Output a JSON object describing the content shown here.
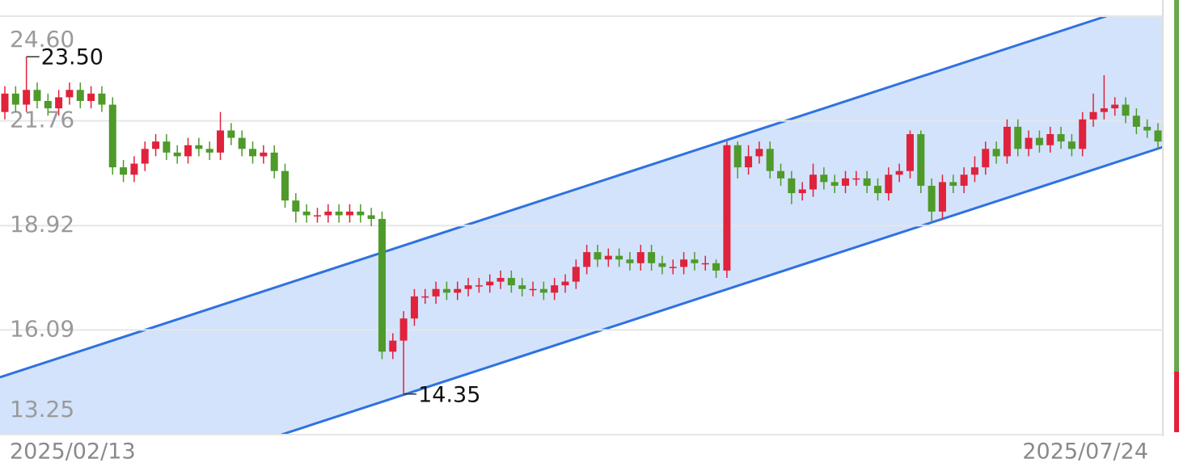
{
  "chart_data": {
    "type": "candlestick",
    "x_labels": [
      "2025/02/13",
      "2025/07/24"
    ],
    "ylim": [
      13.25,
      24.6
    ],
    "yticks": [
      {
        "value": 24.6,
        "label": "24.60"
      },
      21.76,
      18.92,
      16.09,
      13.25
    ],
    "grid": true,
    "up_color": "#e0223c",
    "down_color": "#4e9a2a",
    "open": [
      22.0,
      22.5,
      22.2,
      22.6,
      22.3,
      22.1,
      22.4,
      22.6,
      22.3,
      22.5,
      22.2,
      20.5,
      20.3,
      20.6,
      21.0,
      21.2,
      20.9,
      20.8,
      21.1,
      21.0,
      20.9,
      21.5,
      21.3,
      21.0,
      20.8,
      20.9,
      20.4,
      19.6,
      19.3,
      19.2,
      19.2,
      19.3,
      19.2,
      19.3,
      19.2,
      19.1,
      15.5,
      15.8,
      16.4,
      17.0,
      17.0,
      17.2,
      17.1,
      17.2,
      17.3,
      17.3,
      17.4,
      17.5,
      17.3,
      17.2,
      17.2,
      17.1,
      17.3,
      17.4,
      17.8,
      18.2,
      18.0,
      18.1,
      18.0,
      17.9,
      18.2,
      17.9,
      17.8,
      17.8,
      18.0,
      17.9,
      17.9,
      17.7,
      21.1,
      20.5,
      20.8,
      21.0,
      20.4,
      20.2,
      19.8,
      19.9,
      20.3,
      20.1,
      20.0,
      20.2,
      20.2,
      20.0,
      19.8,
      20.3,
      20.4,
      21.4,
      20.0,
      19.3,
      20.1,
      20.0,
      20.3,
      20.5,
      21.0,
      20.8,
      21.6,
      21.0,
      21.3,
      21.1,
      21.4,
      21.2,
      21.0,
      21.8,
      22.0,
      22.1,
      22.2,
      21.9,
      21.6,
      21.5
    ],
    "high": [
      22.7,
      22.7,
      23.5,
      22.8,
      22.5,
      22.6,
      22.8,
      22.8,
      22.7,
      22.7,
      22.4,
      20.7,
      20.8,
      21.2,
      21.4,
      21.4,
      21.1,
      21.3,
      21.3,
      21.2,
      22.0,
      21.7,
      21.5,
      21.2,
      21.1,
      21.1,
      20.6,
      19.8,
      19.5,
      19.4,
      19.5,
      19.5,
      19.5,
      19.5,
      19.4,
      19.3,
      16.0,
      16.6,
      17.2,
      17.2,
      17.4,
      17.4,
      17.4,
      17.5,
      17.5,
      17.6,
      17.7,
      17.7,
      17.5,
      17.4,
      17.4,
      17.5,
      17.6,
      18.0,
      18.4,
      18.4,
      18.3,
      18.3,
      18.2,
      18.4,
      18.4,
      18.1,
      18.0,
      18.2,
      18.2,
      18.1,
      18.0,
      21.2,
      21.2,
      21.1,
      21.2,
      21.2,
      20.6,
      20.4,
      20.1,
      20.6,
      20.5,
      20.3,
      20.4,
      20.4,
      20.4,
      20.2,
      20.5,
      20.6,
      21.5,
      21.5,
      20.2,
      20.3,
      20.3,
      20.5,
      20.8,
      21.2,
      21.2,
      21.8,
      21.8,
      21.5,
      21.5,
      21.6,
      21.6,
      21.4,
      22.0,
      22.5,
      23.0,
      22.4,
      22.4,
      22.1,
      21.8,
      21.7
    ],
    "low": [
      21.8,
      22.0,
      22.0,
      22.1,
      21.9,
      21.9,
      22.2,
      22.1,
      22.1,
      22.0,
      20.3,
      20.1,
      20.1,
      20.4,
      20.8,
      20.7,
      20.6,
      20.6,
      20.8,
      20.7,
      20.7,
      21.1,
      20.8,
      20.6,
      20.6,
      20.2,
      19.4,
      19.0,
      19.0,
      19.0,
      19.0,
      19.0,
      19.0,
      19.0,
      18.9,
      15.3,
      15.3,
      14.35,
      16.2,
      16.8,
      16.8,
      16.9,
      16.9,
      17.0,
      17.1,
      17.1,
      17.2,
      17.1,
      17.0,
      17.0,
      16.9,
      16.9,
      17.1,
      17.2,
      17.6,
      17.8,
      17.8,
      17.8,
      17.7,
      17.7,
      17.7,
      17.6,
      17.6,
      17.6,
      17.7,
      17.7,
      17.5,
      17.5,
      20.2,
      20.3,
      20.6,
      20.2,
      20.0,
      19.5,
      19.6,
      19.7,
      19.9,
      19.8,
      19.8,
      20.0,
      19.8,
      19.6,
      19.6,
      20.1,
      20.2,
      19.8,
      19.0,
      19.1,
      19.8,
      19.8,
      20.1,
      20.3,
      20.6,
      20.6,
      20.8,
      20.8,
      20.9,
      20.9,
      21.0,
      20.8,
      20.8,
      21.6,
      21.8,
      21.9,
      21.7,
      21.4,
      21.3,
      21.0
    ],
    "close": [
      22.5,
      22.2,
      22.6,
      22.3,
      22.1,
      22.4,
      22.6,
      22.3,
      22.5,
      22.2,
      20.5,
      20.3,
      20.6,
      21.0,
      21.2,
      20.9,
      20.8,
      21.1,
      21.0,
      20.9,
      21.5,
      21.3,
      21.0,
      20.8,
      20.9,
      20.4,
      19.6,
      19.3,
      19.2,
      19.2,
      19.3,
      19.2,
      19.3,
      19.2,
      19.1,
      15.5,
      15.8,
      16.4,
      17.0,
      17.0,
      17.2,
      17.1,
      17.2,
      17.3,
      17.3,
      17.4,
      17.5,
      17.3,
      17.2,
      17.2,
      17.1,
      17.3,
      17.4,
      17.8,
      18.2,
      18.0,
      18.1,
      18.0,
      17.9,
      18.2,
      17.9,
      17.8,
      17.8,
      18.0,
      17.9,
      17.9,
      17.7,
      21.1,
      20.5,
      20.8,
      21.0,
      20.4,
      20.2,
      19.8,
      19.9,
      20.3,
      20.1,
      20.0,
      20.2,
      20.2,
      20.0,
      19.8,
      20.3,
      20.4,
      21.4,
      20.0,
      19.3,
      20.1,
      20.0,
      20.3,
      20.5,
      21.0,
      20.8,
      21.6,
      21.0,
      21.3,
      21.1,
      21.4,
      21.2,
      21.0,
      21.8,
      22.0,
      22.1,
      22.2,
      21.9,
      21.6,
      21.5,
      21.2
    ],
    "annotations": [
      {
        "value": 23.5,
        "label": "23.50"
      },
      {
        "value": 14.35,
        "label": "14.35"
      }
    ]
  }
}
